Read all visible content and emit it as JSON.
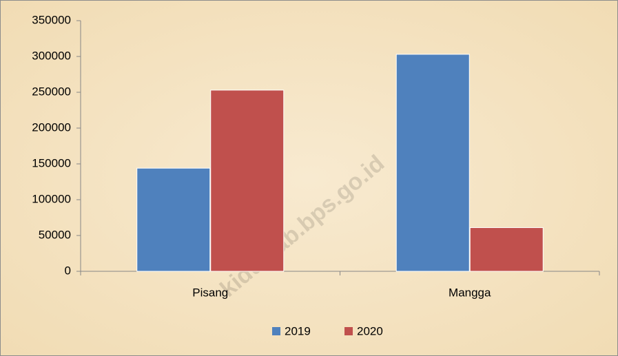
{
  "chart_data": {
    "type": "bar",
    "categories": [
      "Pisang",
      "Mangga"
    ],
    "series": [
      {
        "name": "2019",
        "color": "#4f81bd",
        "values": [
          144000,
          303000
        ]
      },
      {
        "name": "2020",
        "color": "#c0504d",
        "values": [
          253000,
          61000
        ]
      }
    ],
    "ylim": [
      0,
      350000
    ],
    "yticks": [
      0,
      50000,
      100000,
      150000,
      200000,
      250000,
      300000,
      350000
    ],
    "grid": false,
    "legend": "bottom",
    "annotation": "kidulkab.bps.go.id"
  }
}
